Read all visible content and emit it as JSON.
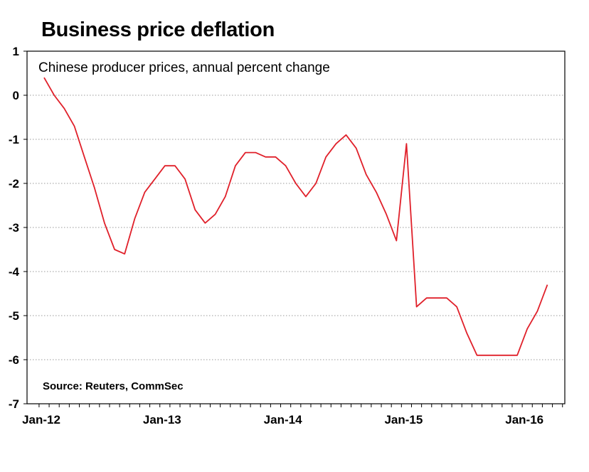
{
  "chart_data": {
    "type": "line",
    "title": "Business price deflation",
    "subtitle": "Chinese producer prices, annual percent change",
    "source": "Source: Reuters, CommSec",
    "xlabel": "",
    "ylabel": "",
    "ylim": [
      -7,
      1
    ],
    "y_ticks": [
      1,
      0,
      -1,
      -2,
      -3,
      -4,
      -5,
      -6,
      -7
    ],
    "x_tick_labels": [
      "Jan-12",
      "Jan-13",
      "Jan-14",
      "Jan-15",
      "Jan-16"
    ],
    "grid": true,
    "line_color": "#e0202a",
    "series": [
      {
        "values": [
          0.4,
          0.0,
          -0.3,
          -0.7,
          -1.4,
          -2.1,
          -2.9,
          -3.5,
          -3.6,
          -2.8,
          -2.2,
          -1.9,
          -1.6,
          -1.6,
          -1.9,
          -2.6,
          -2.9,
          -2.7,
          -2.3,
          -1.6,
          -1.3,
          -1.3,
          -1.4,
          -1.4,
          -1.6,
          -2.0,
          -2.3,
          -2.0,
          -1.4,
          -1.1,
          -0.9,
          -1.2,
          -1.8,
          -2.2,
          -2.7,
          -3.3,
          -1.1,
          -4.8,
          -4.6,
          -4.6,
          -4.6,
          -4.8,
          -5.4,
          -5.9,
          -5.9,
          -5.9,
          -5.9,
          -5.9,
          -5.3,
          -4.9,
          -4.3
        ]
      }
    ]
  }
}
